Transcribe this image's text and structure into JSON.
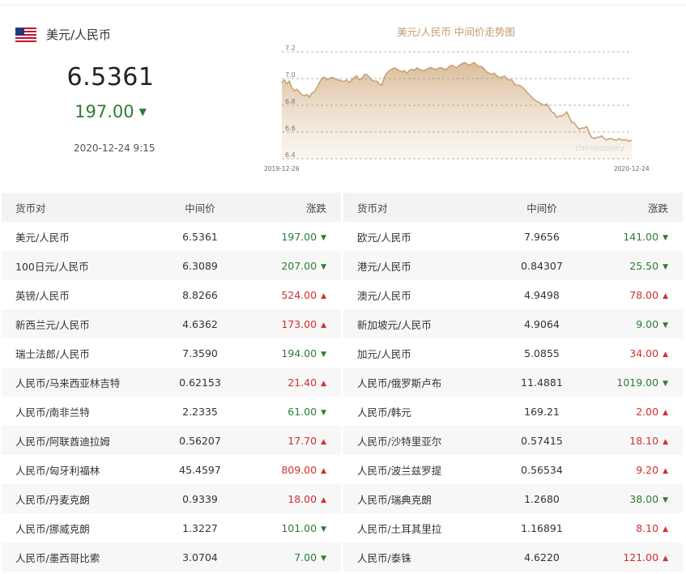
{
  "header": {
    "pair": "美元/人民币",
    "flag_icon": "us-flag-icon",
    "mid_rate": "6.5361",
    "change": "197.00",
    "direction": "down",
    "timestamp": "2020-12-24 9:15"
  },
  "colors": {
    "up": "#d32f2f",
    "down": "#2e7d32",
    "chart_stroke": "#c9a27a",
    "chart_fill_top": "#d9b993",
    "title": "#c49a6c"
  },
  "chart_data": {
    "type": "area",
    "title": "美元/人民币 中间价走势图",
    "watermark": "chinamoney",
    "x_start": "2019-12-26",
    "x_end": "2020-12-24",
    "yticks": [
      "7.2",
      "7.0",
      "6.8",
      "6.6",
      "6.4"
    ],
    "ylim": [
      6.4,
      7.2
    ],
    "grid": "dashed horizontal",
    "values": [
      6.97,
      6.99,
      6.96,
      6.98,
      6.93,
      6.91,
      6.92,
      6.9,
      6.88,
      6.87,
      6.88,
      6.86,
      6.89,
      6.9,
      6.93,
      6.97,
      7.0,
      7.01,
      6.99,
      7.0,
      7.01,
      7.0,
      6.99,
      6.99,
      6.98,
      6.98,
      6.99,
      6.97,
      6.99,
      7.01,
      7.02,
      6.99,
      7.0,
      7.03,
      7.03,
      7.01,
      6.99,
      6.98,
      6.98,
      6.96,
      6.95,
      7.01,
      7.04,
      7.06,
      7.07,
      7.08,
      7.07,
      7.06,
      7.05,
      7.06,
      7.04,
      7.06,
      7.07,
      7.06,
      7.08,
      7.07,
      7.06,
      7.06,
      7.07,
      7.08,
      7.08,
      7.07,
      7.07,
      7.08,
      7.08,
      7.07,
      7.07,
      7.09,
      7.1,
      7.09,
      7.08,
      7.1,
      7.11,
      7.12,
      7.11,
      7.1,
      7.11,
      7.12,
      7.1,
      7.09,
      7.09,
      7.07,
      7.05,
      7.04,
      7.03,
      7.04,
      7.02,
      7.01,
      7.01,
      7.02,
      7.0,
      6.99,
      6.99,
      6.96,
      6.95,
      6.95,
      6.94,
      6.92,
      6.9,
      6.88,
      6.86,
      6.84,
      6.83,
      6.82,
      6.81,
      6.8,
      6.81,
      6.78,
      6.75,
      6.74,
      6.71,
      6.72,
      6.72,
      6.73,
      6.75,
      6.71,
      6.67,
      6.67,
      6.64,
      6.62,
      6.63,
      6.63,
      6.64,
      6.59,
      6.56,
      6.55,
      6.56,
      6.56,
      6.57,
      6.55,
      6.54,
      6.55,
      6.55,
      6.54,
      6.54,
      6.55,
      6.54,
      6.54,
      6.54,
      6.53,
      6.54
    ]
  },
  "table": {
    "headers": {
      "pair": "货币对",
      "mid": "中间价",
      "change": "涨跌"
    },
    "left": [
      {
        "pair": "美元/人民币",
        "mid": "6.5361",
        "change": "197.00",
        "dir": "down"
      },
      {
        "pair": "100日元/人民币",
        "mid": "6.3089",
        "change": "207.00",
        "dir": "down"
      },
      {
        "pair": "英镑/人民币",
        "mid": "8.8266",
        "change": "524.00",
        "dir": "up"
      },
      {
        "pair": "新西兰元/人民币",
        "mid": "4.6362",
        "change": "173.00",
        "dir": "up"
      },
      {
        "pair": "瑞士法郎/人民币",
        "mid": "7.3590",
        "change": "194.00",
        "dir": "down"
      },
      {
        "pair": "人民币/马来西亚林吉特",
        "mid": "0.62153",
        "change": "21.40",
        "dir": "up"
      },
      {
        "pair": "人民币/南非兰特",
        "mid": "2.2335",
        "change": "61.00",
        "dir": "down"
      },
      {
        "pair": "人民币/阿联酋迪拉姆",
        "mid": "0.56207",
        "change": "17.70",
        "dir": "up"
      },
      {
        "pair": "人民币/匈牙利福林",
        "mid": "45.4597",
        "change": "809.00",
        "dir": "up"
      },
      {
        "pair": "人民币/丹麦克朗",
        "mid": "0.9339",
        "change": "18.00",
        "dir": "up"
      },
      {
        "pair": "人民币/挪威克朗",
        "mid": "1.3227",
        "change": "101.00",
        "dir": "down"
      },
      {
        "pair": "人民币/墨西哥比索",
        "mid": "3.0704",
        "change": "7.00",
        "dir": "down"
      }
    ],
    "right": [
      {
        "pair": "欧元/人民币",
        "mid": "7.9656",
        "change": "141.00",
        "dir": "down"
      },
      {
        "pair": "港元/人民币",
        "mid": "0.84307",
        "change": "25.50",
        "dir": "down"
      },
      {
        "pair": "澳元/人民币",
        "mid": "4.9498",
        "change": "78.00",
        "dir": "up"
      },
      {
        "pair": "新加坡元/人民币",
        "mid": "4.9064",
        "change": "9.00",
        "dir": "down"
      },
      {
        "pair": "加元/人民币",
        "mid": "5.0855",
        "change": "34.00",
        "dir": "up"
      },
      {
        "pair": "人民币/俄罗斯卢布",
        "mid": "11.4881",
        "change": "1019.00",
        "dir": "down"
      },
      {
        "pair": "人民币/韩元",
        "mid": "169.21",
        "change": "2.00",
        "dir": "up"
      },
      {
        "pair": "人民币/沙特里亚尔",
        "mid": "0.57415",
        "change": "18.10",
        "dir": "up"
      },
      {
        "pair": "人民币/波兰兹罗提",
        "mid": "0.56534",
        "change": "9.20",
        "dir": "up"
      },
      {
        "pair": "人民币/瑞典克朗",
        "mid": "1.2680",
        "change": "38.00",
        "dir": "down"
      },
      {
        "pair": "人民币/土耳其里拉",
        "mid": "1.16891",
        "change": "8.10",
        "dir": "up"
      },
      {
        "pair": "人民币/泰铢",
        "mid": "4.6220",
        "change": "121.00",
        "dir": "up"
      }
    ]
  }
}
